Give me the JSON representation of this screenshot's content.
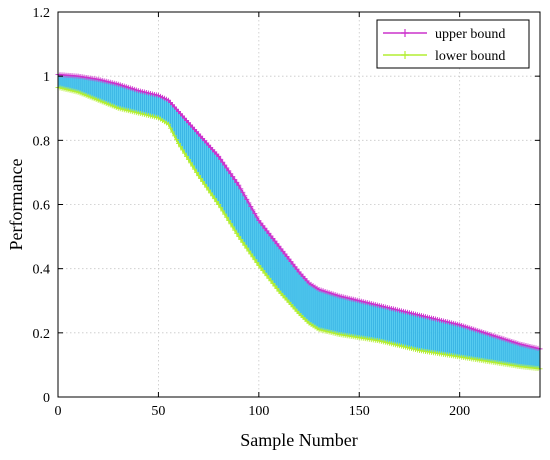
{
  "chart_data": {
    "type": "line",
    "title": "",
    "xlabel": "Sample Number",
    "ylabel": "Performance",
    "xlim": [
      0,
      240
    ],
    "ylim": [
      0,
      1.2
    ],
    "xticks": [
      0,
      50,
      100,
      150,
      200
    ],
    "yticks": [
      0,
      0.2,
      0.4,
      0.6,
      0.8,
      1,
      1.2
    ],
    "ytick_labels": [
      "0",
      "0.2",
      "0.4",
      "0.6",
      "0.8",
      "1",
      "1.2"
    ],
    "grid": true,
    "legend": {
      "position": "top-right"
    },
    "band_fill_color": "#45c6ee",
    "x": [
      0,
      10,
      20,
      30,
      40,
      50,
      55,
      60,
      70,
      80,
      90,
      100,
      110,
      120,
      125,
      130,
      140,
      150,
      160,
      170,
      180,
      190,
      200,
      210,
      220,
      230,
      240
    ],
    "series": [
      {
        "name": "upper bound",
        "color": "#cc33cc",
        "marker": "+",
        "values": [
          1.005,
          1.0,
          0.99,
          0.975,
          0.955,
          0.94,
          0.925,
          0.89,
          0.82,
          0.75,
          0.66,
          0.55,
          0.47,
          0.39,
          0.355,
          0.335,
          0.315,
          0.3,
          0.285,
          0.27,
          0.255,
          0.24,
          0.225,
          0.205,
          0.185,
          0.165,
          0.15
        ]
      },
      {
        "name": "lower bound",
        "color": "#b3ee33",
        "marker": "+",
        "values": [
          0.965,
          0.95,
          0.925,
          0.9,
          0.885,
          0.87,
          0.85,
          0.79,
          0.69,
          0.6,
          0.5,
          0.41,
          0.33,
          0.26,
          0.23,
          0.21,
          0.195,
          0.185,
          0.175,
          0.16,
          0.145,
          0.135,
          0.125,
          0.115,
          0.105,
          0.095,
          0.088
        ]
      }
    ]
  }
}
